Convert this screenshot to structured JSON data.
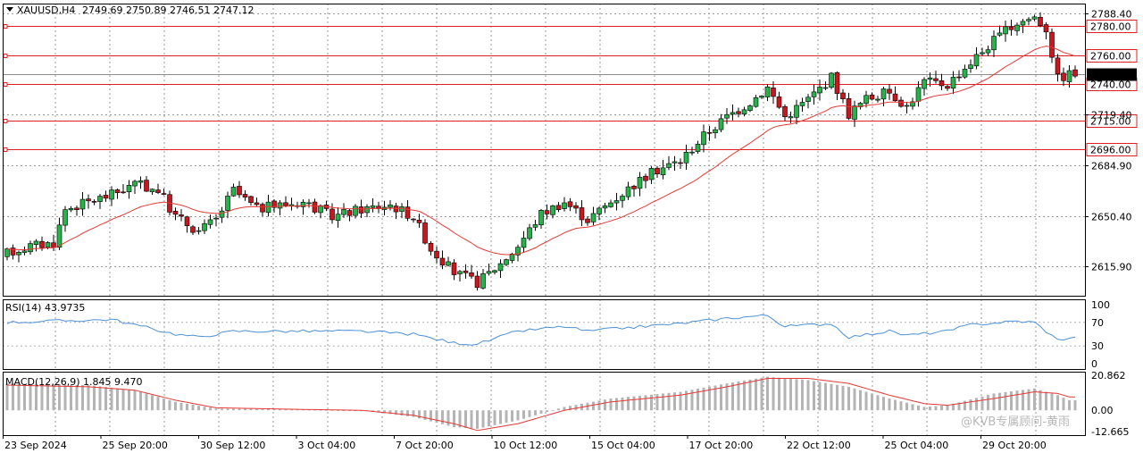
{
  "header": {
    "symbol": "XAUUSD,H4",
    "ohlc": "2749.69 2750.89 2746.51 2747.12"
  },
  "rsi": {
    "label": "RSI(14) 43.9735",
    "levels": [
      "100",
      "70",
      "30",
      "0"
    ]
  },
  "macd": {
    "label": "MACD(12,26,9) 1.845 9.470",
    "levels": [
      "20.862",
      "0.00",
      "-12.665"
    ]
  },
  "watermark": "@KVB专属顾问-黄雨",
  "colors": {
    "bull": "#27b24a",
    "bear": "#c8171e",
    "ma": "#e53935",
    "rsi": "#4a90d9",
    "macd_hist": "#b4b4b4",
    "macd_signal": "#e53935",
    "level": "#e02020",
    "grid": "#9a9a9a"
  },
  "chart_data": {
    "type": "candlestick",
    "price_axis": {
      "min": 2596,
      "max": 2795,
      "ticks": [
        "2788.40",
        "2719.40",
        "2684.90",
        "2650.40",
        "2615.90"
      ]
    },
    "current_price": "2747.12",
    "levels": [
      {
        "price": 2780,
        "label": "2780.00"
      },
      {
        "price": 2760,
        "label": "2760.00"
      },
      {
        "price": 2740,
        "label": "2740.00"
      },
      {
        "price": 2715,
        "label": "2715.00"
      },
      {
        "price": 2696,
        "label": "2696.00"
      }
    ],
    "time_labels": [
      "23 Sep 2024",
      "25 Sep 20:00",
      "30 Sep 12:00",
      "3 Oct 04:00",
      "7 Oct 20:00",
      "10 Oct 12:00",
      "15 Oct 04:00",
      "17 Oct 20:00",
      "22 Oct 12:00",
      "25 Oct 04:00",
      "29 Oct 20:00"
    ],
    "anchors": [
      [
        0,
        2625
      ],
      [
        4,
        2630
      ],
      [
        8,
        2632
      ],
      [
        10,
        2655
      ],
      [
        14,
        2660
      ],
      [
        18,
        2665
      ],
      [
        22,
        2672
      ],
      [
        26,
        2668
      ],
      [
        29,
        2650
      ],
      [
        33,
        2640
      ],
      [
        36,
        2648
      ],
      [
        39,
        2668
      ],
      [
        43,
        2655
      ],
      [
        47,
        2658
      ],
      [
        51,
        2660
      ],
      [
        56,
        2650
      ],
      [
        61,
        2655
      ],
      [
        66,
        2658
      ],
      [
        70,
        2650
      ],
      [
        73,
        2628
      ],
      [
        77,
        2612
      ],
      [
        81,
        2605
      ],
      [
        85,
        2618
      ],
      [
        88,
        2630
      ],
      [
        92,
        2652
      ],
      [
        96,
        2660
      ],
      [
        100,
        2648
      ],
      [
        104,
        2660
      ],
      [
        108,
        2672
      ],
      [
        112,
        2682
      ],
      [
        116,
        2688
      ],
      [
        120,
        2705
      ],
      [
        124,
        2718
      ],
      [
        128,
        2728
      ],
      [
        131,
        2738
      ],
      [
        134,
        2718
      ],
      [
        138,
        2730
      ],
      [
        142,
        2745
      ],
      [
        145,
        2720
      ],
      [
        148,
        2730
      ],
      [
        152,
        2735
      ],
      [
        155,
        2725
      ],
      [
        158,
        2742
      ],
      [
        162,
        2740
      ],
      [
        166,
        2755
      ],
      [
        170,
        2770
      ],
      [
        174,
        2782
      ],
      [
        177,
        2786
      ],
      [
        179,
        2778
      ],
      [
        181,
        2744
      ],
      [
        183,
        2747
      ]
    ],
    "rsi_anchors": [
      [
        0,
        70
      ],
      [
        18,
        75
      ],
      [
        29,
        50
      ],
      [
        33,
        45
      ],
      [
        39,
        55
      ],
      [
        51,
        55
      ],
      [
        61,
        55
      ],
      [
        70,
        50
      ],
      [
        77,
        35
      ],
      [
        81,
        33
      ],
      [
        88,
        55
      ],
      [
        96,
        63
      ],
      [
        100,
        55
      ],
      [
        108,
        62
      ],
      [
        116,
        68
      ],
      [
        124,
        77
      ],
      [
        131,
        82
      ],
      [
        134,
        63
      ],
      [
        142,
        68
      ],
      [
        145,
        45
      ],
      [
        152,
        55
      ],
      [
        155,
        48
      ],
      [
        162,
        55
      ],
      [
        166,
        66
      ],
      [
        174,
        72
      ],
      [
        177,
        70
      ],
      [
        181,
        40
      ],
      [
        183,
        44
      ]
    ],
    "macd_anchors": [
      [
        0,
        16
      ],
      [
        14,
        15
      ],
      [
        22,
        12
      ],
      [
        29,
        5
      ],
      [
        36,
        1
      ],
      [
        51,
        0.5
      ],
      [
        61,
        0
      ],
      [
        70,
        -4
      ],
      [
        77,
        -10
      ],
      [
        81,
        -11
      ],
      [
        88,
        -6
      ],
      [
        96,
        2
      ],
      [
        104,
        7
      ],
      [
        116,
        11
      ],
      [
        124,
        16
      ],
      [
        131,
        20
      ],
      [
        138,
        18
      ],
      [
        145,
        14
      ],
      [
        152,
        7
      ],
      [
        158,
        2
      ],
      [
        162,
        3
      ],
      [
        170,
        10
      ],
      [
        177,
        13
      ],
      [
        181,
        9
      ],
      [
        183,
        6
      ]
    ],
    "signal_anchors": [
      [
        0,
        15
      ],
      [
        14,
        14
      ],
      [
        22,
        12
      ],
      [
        29,
        6
      ],
      [
        36,
        1.5
      ],
      [
        51,
        0.5
      ],
      [
        61,
        0
      ],
      [
        70,
        -3
      ],
      [
        77,
        -8
      ],
      [
        81,
        -12
      ],
      [
        88,
        -8
      ],
      [
        96,
        0
      ],
      [
        104,
        5
      ],
      [
        116,
        9
      ],
      [
        124,
        14
      ],
      [
        131,
        19
      ],
      [
        138,
        19
      ],
      [
        145,
        16
      ],
      [
        152,
        9
      ],
      [
        158,
        4
      ],
      [
        162,
        3
      ],
      [
        170,
        7
      ],
      [
        177,
        11
      ],
      [
        181,
        10
      ],
      [
        183,
        8
      ]
    ]
  }
}
